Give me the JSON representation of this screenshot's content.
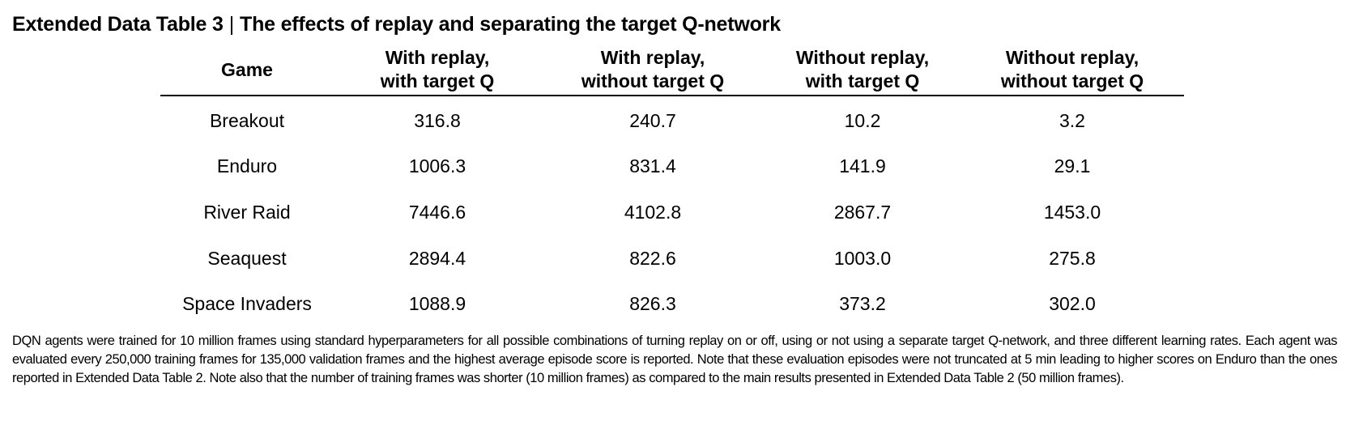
{
  "title": {
    "label": "Extended Data Table 3",
    "separator": "|",
    "text": "The effects of replay and separating the target Q-network"
  },
  "table": {
    "headers": [
      {
        "lines": [
          "Game"
        ]
      },
      {
        "lines": [
          "With replay,",
          "with target Q"
        ]
      },
      {
        "lines": [
          "With replay,",
          "without target Q"
        ]
      },
      {
        "lines": [
          "Without replay,",
          "with target Q"
        ]
      },
      {
        "lines": [
          "Without replay,",
          "without target Q"
        ]
      }
    ],
    "rows": [
      [
        "Breakout",
        "316.8",
        "240.7",
        "10.2",
        "3.2"
      ],
      [
        "Enduro",
        "1006.3",
        "831.4",
        "141.9",
        "29.1"
      ],
      [
        "River Raid",
        "7446.6",
        "4102.8",
        "2867.7",
        "1453.0"
      ],
      [
        "Seaquest",
        "2894.4",
        "822.6",
        "1003.0",
        "275.8"
      ],
      [
        "Space Invaders",
        "1088.9",
        "826.3",
        "373.2",
        "302.0"
      ]
    ]
  },
  "caption": "DQN agents were trained for 10 million frames using standard hyperparameters for all possible combinations of turning replay on or off, using or not using a separate target Q-network, and three different learning rates. Each agent was evaluated every 250,000 training frames for 135,000 validation frames and the highest average episode score is reported. Note that these evaluation episodes were not truncated at 5 min leading to higher scores on Enduro than the ones reported in Extended Data Table 2. Note also that the number of training frames was shorter (10 million frames) as compared to the main results presented in Extended Data Table 2 (50 million frames)."
}
